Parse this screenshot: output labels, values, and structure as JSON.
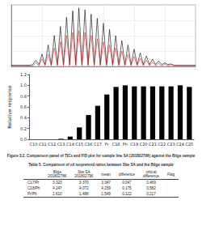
{
  "chart_data": [
    {
      "type": "line",
      "x": [
        0,
        1,
        2,
        3,
        4,
        5,
        6,
        7,
        8,
        9,
        10,
        11,
        12,
        13,
        14,
        15,
        16,
        17,
        18,
        19,
        20,
        21,
        22,
        23,
        24,
        25,
        26,
        27,
        28,
        29,
        30,
        31,
        32,
        33,
        34,
        35,
        36,
        37,
        38,
        39,
        40,
        41,
        42,
        43,
        44,
        45,
        46,
        47,
        48,
        49,
        50,
        51,
        52,
        53,
        54,
        55,
        56,
        57,
        58,
        59,
        60
      ],
      "series": [
        {
          "color": "#000000",
          "values": [
            0.02,
            0.02,
            0.02,
            0.02,
            0.02,
            0.02,
            0.02,
            0.03,
            0.1,
            0.03,
            0.2,
            0.03,
            0.35,
            0.03,
            0.5,
            0.03,
            0.65,
            0.03,
            0.8,
            0.03,
            0.9,
            0.03,
            0.95,
            0.03,
            0.92,
            0.03,
            0.85,
            0.03,
            0.78,
            0.03,
            0.7,
            0.03,
            0.6,
            0.03,
            0.5,
            0.03,
            0.42,
            0.03,
            0.35,
            0.03,
            0.28,
            0.03,
            0.22,
            0.03,
            0.17,
            0.03,
            0.12,
            0.03,
            0.09,
            0.03,
            0.06,
            0.03,
            0.04,
            0.02,
            0.02,
            0.02,
            0.02,
            0.02,
            0.02,
            0.02,
            0.02
          ]
        },
        {
          "color": "#e02020",
          "values": [
            0.01,
            0.01,
            0.01,
            0.01,
            0.01,
            0.01,
            0.01,
            0.01,
            0.06,
            0.01,
            0.12,
            0.01,
            0.2,
            0.01,
            0.3,
            0.01,
            0.4,
            0.01,
            0.5,
            0.01,
            0.55,
            0.01,
            0.58,
            0.01,
            0.55,
            0.01,
            0.5,
            0.01,
            0.45,
            0.01,
            0.4,
            0.01,
            0.35,
            0.01,
            0.3,
            0.01,
            0.25,
            0.01,
            0.2,
            0.01,
            0.16,
            0.01,
            0.13,
            0.01,
            0.1,
            0.01,
            0.07,
            0.01,
            0.05,
            0.01,
            0.04,
            0.01,
            0.03,
            0.01,
            0.01,
            0.01,
            0.01,
            0.01,
            0.01,
            0.01,
            0.01
          ]
        }
      ],
      "xlim": [
        0,
        60
      ],
      "xticks": [
        0,
        10,
        20,
        30,
        40,
        50,
        60
      ],
      "ylim": [
        0,
        1
      ],
      "yticks": [
        0,
        0.25,
        0.5,
        0.75,
        1
      ],
      "grid": true,
      "tick_labels": false
    },
    {
      "type": "bar",
      "y_label": "Relative response",
      "categories": [
        "C10",
        "C11",
        "C12",
        "C13",
        "C14",
        "C15",
        "C16",
        "C17",
        "Pr",
        "C18",
        "Ph",
        "C19",
        "C20",
        "C21",
        "C22",
        "C23",
        "C24",
        "C25"
      ],
      "values": [
        0,
        0,
        0,
        0.01,
        0.05,
        0.22,
        0.45,
        0.62,
        0.83,
        0.97,
        1.0,
        0.98,
        0.98,
        0.98,
        0.98,
        0.98,
        1.0,
        0.97
      ],
      "color": "#000000",
      "ylim": [
        0,
        1.2
      ],
      "yticks": [
        {
          "value": 0,
          "label": "0.0"
        },
        {
          "value": 0.2,
          "label": "0.2"
        },
        {
          "value": 0.4,
          "label": "0.4"
        },
        {
          "value": 0.6,
          "label": "0.6"
        },
        {
          "value": 0.8,
          "label": "0.8"
        },
        {
          "value": 1,
          "label": "1.0"
        },
        {
          "value": 1.2,
          "label": "1.2"
        }
      ],
      "grid": false
    }
  ],
  "figure_caption": "Figure 3.2. Comparison panel of TICs and FID plot for sample line SA (201802796) against the Bilge sample",
  "table": {
    "title": "Table 5. Comparison of oil isoprenoid ratios between Site SA and the Bilge sample",
    "header": [
      null,
      [
        "Bilge",
        "201802786"
      ],
      [
        "Site SA",
        "201802796"
      ],
      [
        "mean"
      ],
      [
        "difference"
      ],
      [
        "critical",
        "difference"
      ],
      [
        "Flag"
      ]
    ],
    "rows": [
      [
        "C17/Pr",
        "3.323",
        "3.370",
        "3.347",
        "0.047",
        "0.469",
        null
      ],
      [
        "C18/Ph",
        "4.247",
        "4.072",
        "4.159",
        "0.175",
        "0.582",
        null
      ],
      [
        "Pr/Ph",
        "1.610",
        "1.488",
        "1.549",
        "0.122",
        "0.217",
        null
      ]
    ]
  }
}
